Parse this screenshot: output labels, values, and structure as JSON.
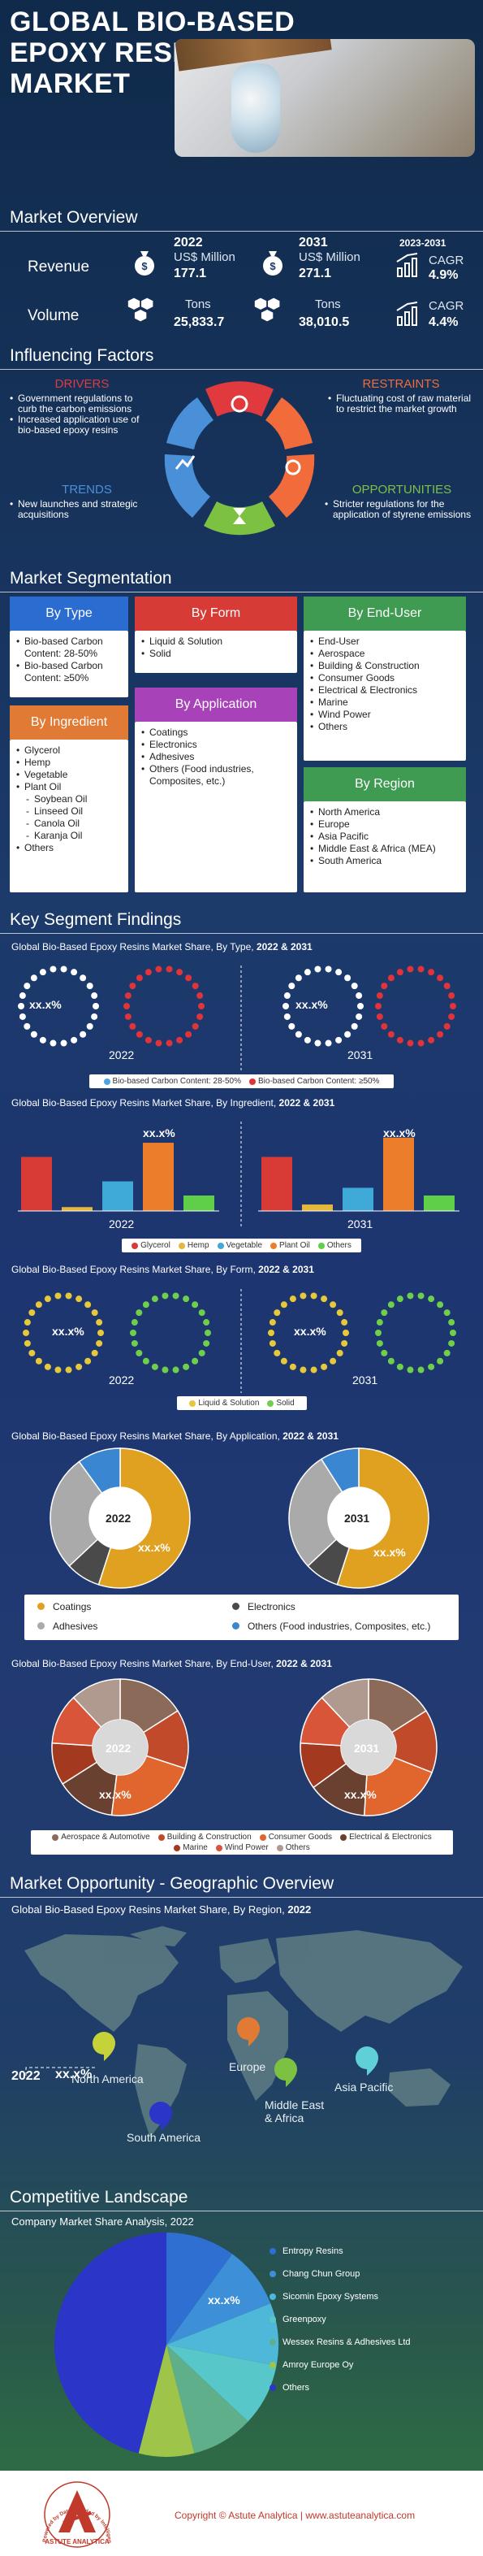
{
  "header": {
    "title_line1": "GLOBAL BIO-BASED",
    "title_line2": "EPOXY RESINS",
    "title_line3": "MARKET"
  },
  "overview": {
    "title": "Market Overview",
    "year_a": "2022",
    "year_b": "2031",
    "period": "2023-2031",
    "revenue_label": "Revenue",
    "volume_label": "Volume",
    "rev_unit": "US$ Million",
    "vol_unit": "Tons",
    "cagr_label": "CAGR",
    "rev_2022": "177.1",
    "rev_2031": "271.1",
    "rev_cagr": "4.9%",
    "vol_2022": "25,833.7",
    "vol_2031": "38,010.5",
    "vol_cagr": "4.4%"
  },
  "factors": {
    "title": "Influencing Factors",
    "drivers_title": "DRIVERS",
    "drivers": [
      "Government regulations to curb the carbon emissions",
      "Increased application use of bio-based epoxy resins"
    ],
    "restraints_title": "RESTRAINTS",
    "restraints": [
      "Fluctuating cost of raw material to restrict the market growth"
    ],
    "trends_title": "TRENDS",
    "trends": [
      "New launches and strategic acquisitions"
    ],
    "opportunities_title": "OPPORTUNITIES",
    "opportunities": [
      "Stricter regulations for the application of styrene emissions"
    ],
    "colors": {
      "drivers": "#e03a3e",
      "restraints": "#f26b3a",
      "trends": "#4a90d9",
      "opportunities": "#7cc142"
    }
  },
  "segmentation": {
    "title": "Market Segmentation",
    "type_title": "By Type",
    "type_items": [
      "Bio-based Carbon Content: 28-50%",
      "Bio-based Carbon Content: ≥50%"
    ],
    "form_title": "By Form",
    "form_items": [
      "Liquid & Solution",
      "Solid"
    ],
    "enduser_title": "By End-User",
    "enduser_items": [
      "End-User",
      "Aerospace",
      "Building & Construction",
      "Consumer Goods",
      "Electrical & Electronics",
      "Marine",
      "Wind Power",
      "Others"
    ],
    "ingredient_title": "By Ingredient",
    "ingredient_items": [
      "Glycerol",
      "Hemp",
      "Vegetable",
      "Plant Oil"
    ],
    "ingredient_sub": [
      "Soybean Oil",
      "Linseed Oil",
      "Canola Oil",
      "Karanja Oil"
    ],
    "ingredient_last": "Others",
    "application_title": "By Application",
    "application_items": [
      "Coatings",
      "Electronics",
      "Adhesives",
      "Others (Food industries, Composites, etc.)"
    ],
    "region_title": "By Region",
    "region_items": [
      "North America",
      "Europe",
      "Asia Pacific",
      "Middle East & Africa (MEA)",
      "South America"
    ]
  },
  "findings": {
    "title": "Key Segment Findings",
    "type_chart": "Global Bio-Based Epoxy Resins Market Share, By Type,",
    "type_years": "2022 & 2031",
    "ingredient_chart": "Global Bio-Based Epoxy Resins Market Share, By Ingredient,",
    "ingredient_years": "2022 & 2031",
    "form_chart": "Global Bio-Based Epoxy Resins Market Share, By Form,",
    "form_years": "2022 & 2031",
    "application_chart": "Global Bio-Based Epoxy Resins Market Share, By Application,",
    "application_years": "2022 & 2031",
    "enduser_chart": "Global Bio-Based Epoxy Resins Market Share, By End-User,",
    "enduser_years": "2022 & 2031",
    "y2022": "2022",
    "y2031": "2031",
    "placeholder": "xx.x%",
    "type_legend": [
      "Bio-based Carbon Content: 28-50%",
      "Bio-based Carbon Content: ≥50%"
    ],
    "ingredient_legend": [
      "Glycerol",
      "Hemp",
      "Vegetable",
      "Plant Oil",
      "Others"
    ],
    "form_legend": [
      "Liquid & Solution",
      "Solid"
    ],
    "application_legend": [
      "Coatings",
      "Electronics",
      "Adhesives",
      "Others (Food industries, Composites, etc.)"
    ],
    "enduser_legend": [
      "Aerospace & Automotive",
      "Building & Construction",
      "Consumer Goods",
      "Electrical & Electronics",
      "Marine",
      "Wind Power",
      "Others"
    ]
  },
  "geo": {
    "title": "Market Opportunity - Geographic Overview",
    "chart": "Global Bio-Based Epoxy Resins Market Share, By Region,",
    "chart_year": "2022",
    "year": "2022",
    "value": "xx.x%",
    "regions": [
      "North America",
      "Europe",
      "Asia Pacific",
      "Middle East & Africa",
      "South America"
    ]
  },
  "competitive": {
    "title": "Competitive Landscape",
    "chart": "Company Market Share Analysis, 2022",
    "placeholder": "xx.x%",
    "companies": [
      "Entropy Resins",
      "Chang Chun Group",
      "Sicomin Epoxy Systems",
      "Greenpoxy",
      "Wessex Resins & Adhesives Ltd",
      "Amroy Europe Oy",
      "Others"
    ],
    "colors": [
      "#2e6fd1",
      "#3d8fd8",
      "#4fb8d8",
      "#58c7c9",
      "#5fb08a",
      "#9ec44a",
      "#2b35c8"
    ]
  },
  "footer": {
    "copyright": "Copyright © Astute Analytica | www.astuteanalytica.com",
    "logo_text": "ASTUTE ANALYTICA",
    "logo_ring": "Powered by Data | Guided by Intelligence"
  },
  "chart_data": [
    {
      "type": "bar",
      "title": "Global Bio-Based Epoxy Resins Market Share, By Ingredient, 2022 & 2031",
      "categories": [
        "Glycerol",
        "Hemp",
        "Vegetable",
        "Plant Oil",
        "Others"
      ],
      "series": [
        {
          "name": "2022",
          "values": [
            4.2,
            0.3,
            2.3,
            5.3,
            1.2
          ]
        },
        {
          "name": "2031",
          "values": [
            4.2,
            0.5,
            1.8,
            5.7,
            1.2
          ]
        }
      ]
    },
    {
      "type": "pie",
      "title": "Global Bio-Based Epoxy Resins Market Share, By Application, 2022 & 2031",
      "categories": [
        "Coatings",
        "Electronics",
        "Adhesives",
        "Others (Food industries, Composites, etc.)"
      ],
      "series": [
        {
          "name": "2022",
          "values": [
            55,
            8,
            27,
            10
          ]
        },
        {
          "name": "2031",
          "values": [
            55,
            8,
            28,
            9
          ]
        }
      ]
    },
    {
      "type": "pie",
      "title": "Global Bio-Based Epoxy Resins Market Share, By End-User, 2022 & 2031",
      "categories": [
        "Aerospace & Automotive",
        "Building & Construction",
        "Consumer Goods",
        "Electrical & Electronics",
        "Marine",
        "Wind Power",
        "Others"
      ],
      "series": [
        {
          "name": "2022",
          "values": [
            16,
            14,
            22,
            14,
            10,
            12,
            12
          ]
        },
        {
          "name": "2031",
          "values": [
            16,
            15,
            20,
            14,
            11,
            12,
            12
          ]
        }
      ]
    },
    {
      "type": "pie",
      "title": "Company Market Share Analysis, 2022",
      "categories": [
        "Entropy Resins",
        "Chang Chun Group",
        "Sicomin Epoxy Systems",
        "Greenpoxy",
        "Wessex Resins & Adhesives Ltd",
        "Amroy Europe Oy",
        "Others"
      ],
      "values": [
        10,
        9,
        9,
        9,
        9,
        8,
        46
      ]
    }
  ]
}
